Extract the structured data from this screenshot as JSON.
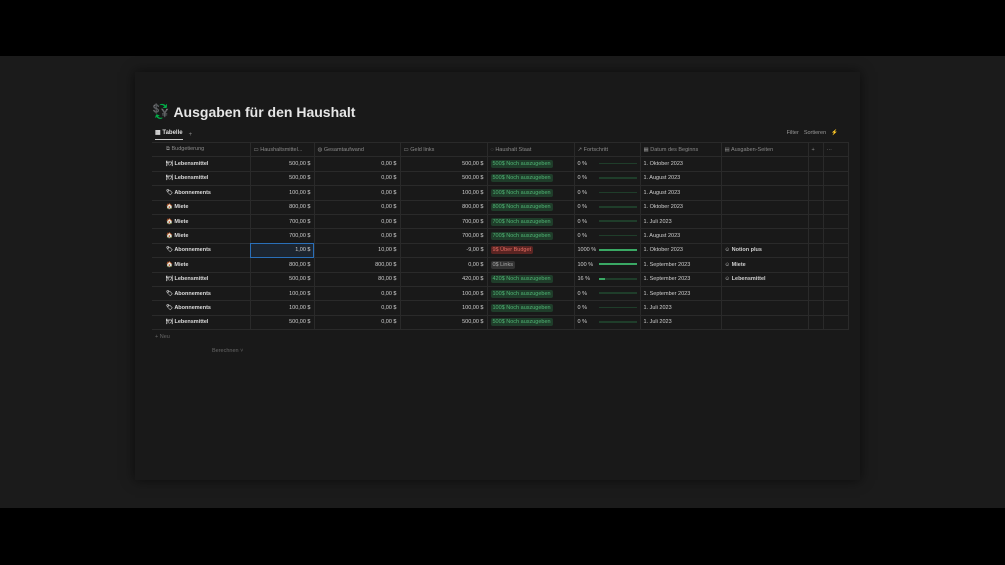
{
  "title": "Ausgaben für den Haushalt",
  "tab": "Tabelle",
  "add": "+",
  "tools": {
    "filter": "Filter",
    "sort": "Sortieren",
    "flash": "⚡"
  },
  "columns": [
    "Budgetierung",
    "Haushaltsmittel...",
    "Gesamtaufwand",
    "Geld links",
    "Haushalt Staat",
    "Fortschritt",
    "Datum des Beginns",
    "Ausgaben-Seiten"
  ],
  "rows": [
    {
      "icon": "🍽",
      "name": "Lebensmittel",
      "budget": "500,00 $",
      "spent": "0,00 $",
      "left": "500,00 $",
      "status": "500$ Noch auszugeben",
      "st": "g",
      "progress": "0 %",
      "pct": 0,
      "date": "1. Oktober 2023",
      "page": ""
    },
    {
      "icon": "🍽",
      "name": "Lebensmittel",
      "budget": "500,00 $",
      "spent": "0,00 $",
      "left": "500,00 $",
      "status": "500$ Noch auszugeben",
      "st": "g",
      "progress": "0 %",
      "pct": 0,
      "date": "1. August 2023",
      "page": ""
    },
    {
      "icon": "🏷",
      "name": "Abonnements",
      "budget": "100,00 $",
      "spent": "0,00 $",
      "left": "100,00 $",
      "status": "100$ Noch auszugeben",
      "st": "g",
      "progress": "0 %",
      "pct": 0,
      "date": "1. August 2023",
      "page": ""
    },
    {
      "icon": "🏠",
      "name": "Miete",
      "budget": "800,00 $",
      "spent": "0,00 $",
      "left": "800,00 $",
      "status": "800$ Noch auszugeben",
      "st": "g",
      "progress": "0 %",
      "pct": 0,
      "date": "1. Oktober 2023",
      "page": ""
    },
    {
      "icon": "🏠",
      "name": "Miete",
      "budget": "700,00 $",
      "spent": "0,00 $",
      "left": "700,00 $",
      "status": "700$ Noch auszugeben",
      "st": "g",
      "progress": "0 %",
      "pct": 0,
      "date": "1. Juli 2023",
      "page": ""
    },
    {
      "icon": "🏠",
      "name": "Miete",
      "budget": "700,00 $",
      "spent": "0,00 $",
      "left": "700,00 $",
      "status": "700$ Noch auszugeben",
      "st": "g",
      "progress": "0 %",
      "pct": 0,
      "date": "1. August 2023",
      "page": ""
    },
    {
      "icon": "🏷",
      "name": "Abonnements",
      "budget": "1,00 $",
      "spent": "10,00 $",
      "left": "-9,00 $",
      "status": "9$ Über Budget",
      "st": "r",
      "progress": "1000 %",
      "pct": 100,
      "date": "1. Oktober 2023",
      "page": "Notion plus",
      "selected": true
    },
    {
      "icon": "🏠",
      "name": "Miete",
      "budget": "800,00 $",
      "spent": "800,00 $",
      "left": "0,00 $",
      "status": "0$ Links",
      "st": "n",
      "progress": "100 %",
      "pct": 100,
      "date": "1. September 2023",
      "page": "Miete"
    },
    {
      "icon": "🍽",
      "name": "Lebensmittel",
      "budget": "500,00 $",
      "spent": "80,00 $",
      "left": "420,00 $",
      "status": "420$ Noch auszugeben",
      "st": "g",
      "progress": "16 %",
      "pct": 16,
      "date": "1. September 2023",
      "page": "Lebensmittel"
    },
    {
      "icon": "🏷",
      "name": "Abonnements",
      "budget": "100,00 $",
      "spent": "0,00 $",
      "left": "100,00 $",
      "status": "100$ Noch auszugeben",
      "st": "g",
      "progress": "0 %",
      "pct": 0,
      "date": "1. September 2023",
      "page": ""
    },
    {
      "icon": "🏷",
      "name": "Abonnements",
      "budget": "100,00 $",
      "spent": "0,00 $",
      "left": "100,00 $",
      "status": "100$ Noch auszugeben",
      "st": "g",
      "progress": "0 %",
      "pct": 0,
      "date": "1. Juli 2023",
      "page": ""
    },
    {
      "icon": "🍽",
      "name": "Lebensmittel",
      "budget": "500,00 $",
      "spent": "0,00 $",
      "left": "500,00 $",
      "status": "500$ Noch auszugeben",
      "st": "g",
      "progress": "0 %",
      "pct": 0,
      "date": "1. Juli 2023",
      "page": ""
    }
  ],
  "new": "+ Neu",
  "calc": "Berechnen ˅"
}
